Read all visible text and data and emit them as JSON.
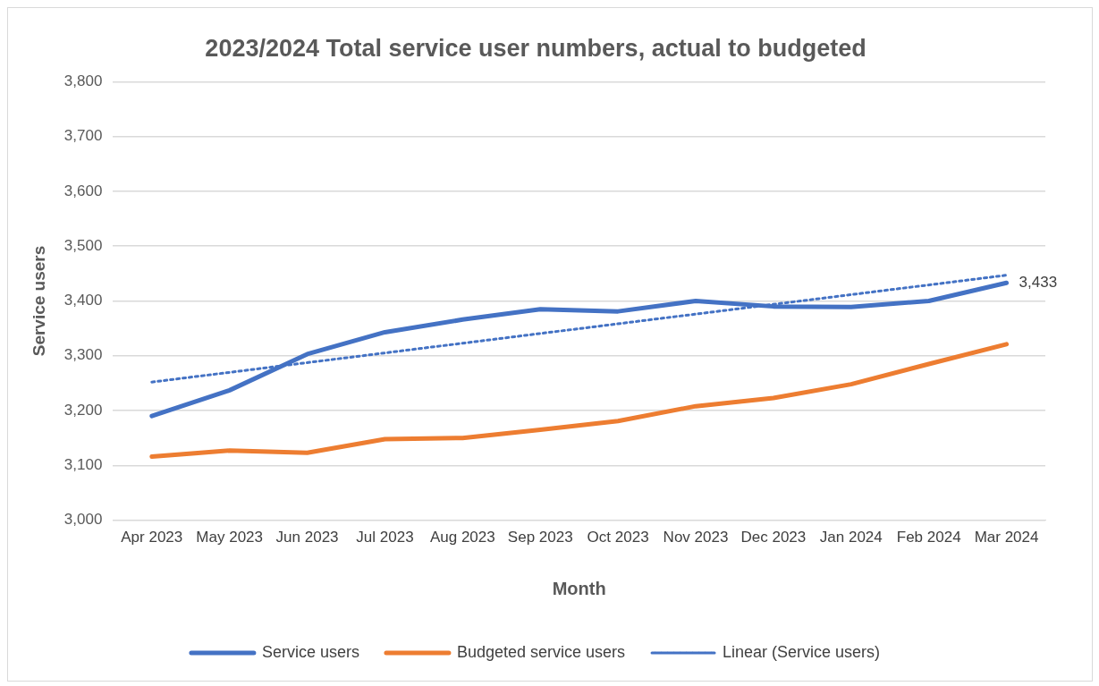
{
  "chart_data": {
    "type": "line",
    "title": "2023/2024 Total service user numbers, actual to budgeted",
    "xlabel": "Month",
    "ylabel": "Service users",
    "categories": [
      "Apr 2023",
      "May 2023",
      "Jun 2023",
      "Jul 2023",
      "Aug 2023",
      "Sep 2023",
      "Oct 2023",
      "Nov 2023",
      "Dec 2023",
      "Jan 2024",
      "Feb 2024",
      "Mar 2024"
    ],
    "series": [
      {
        "name": "Service users",
        "color": "#4472c4",
        "values": [
          3190,
          3237,
          3303,
          3343,
          3366,
          3385,
          3381,
          3400,
          3390,
          3389,
          3400,
          3433
        ]
      },
      {
        "name": "Budgeted service users",
        "color": "#ed7d31",
        "values": [
          3116,
          3127,
          3123,
          3148,
          3150,
          3165,
          3181,
          3208,
          3223,
          3248,
          3285,
          3321
        ]
      },
      {
        "name": "Linear (Service users)",
        "color": "#4472c4",
        "type": "line",
        "line_style": "dotted",
        "x": [
          "Apr 2023",
          "Mar 2024"
        ],
        "values": [
          3252,
          3447
        ]
      }
    ],
    "annotations": [
      {
        "text": "3,433",
        "x": "Mar 2024",
        "y": 3433
      }
    ],
    "ylim": [
      3000,
      3800
    ],
    "yticks": [
      {
        "value": 3000,
        "label": "3,000"
      },
      {
        "value": 3100,
        "label": "3,100"
      },
      {
        "value": 3200,
        "label": "3,200"
      },
      {
        "value": 3300,
        "label": "3,300"
      },
      {
        "value": 3400,
        "label": "3,400"
      },
      {
        "value": 3500,
        "label": "3,500"
      },
      {
        "value": 3600,
        "label": "3,600"
      },
      {
        "value": 3700,
        "label": "3,700"
      },
      {
        "value": 3800,
        "label": "3,800"
      }
    ],
    "grid": "y",
    "legend": "bottom",
    "marker": "none",
    "line_style": "solid"
  }
}
